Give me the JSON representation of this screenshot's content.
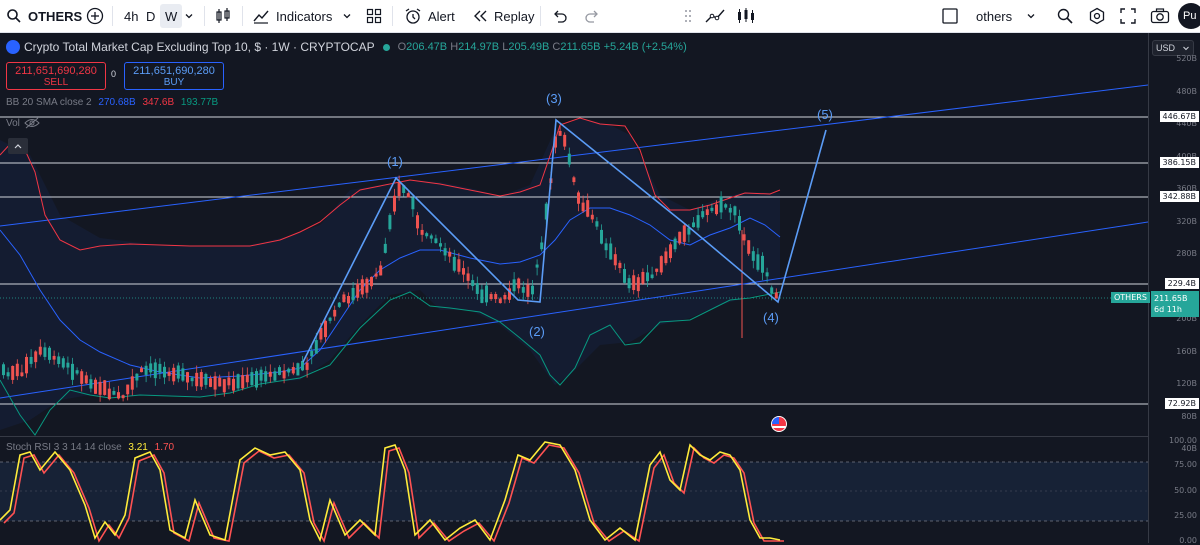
{
  "toolbar": {
    "symbol": "OTHERS",
    "intervals": [
      "4h",
      "D",
      "W"
    ],
    "active_interval": "W",
    "indicators_label": "Indicators",
    "alert_label": "Alert",
    "replay_label": "Replay",
    "layout_name": "others",
    "profile_initials": "Pu"
  },
  "legend": {
    "title": "Crypto Total Market Cap Excluding Top 10, $ · 1W · CRYPTOCAP",
    "open": "206.47B",
    "high": "214.97B",
    "low": "205.49B",
    "close": "211.65B",
    "change": "+5.24B (+2.54%)",
    "sell_price": "211,651,690,280",
    "sell_label": "SELL",
    "spread": "0",
    "buy_price": "211,651,690,280",
    "buy_label": "BUY",
    "bb_label": "BB 20 SMA close 2",
    "bb_basis": "270.68B",
    "bb_upper": "347.6B",
    "bb_lower": "193.77B",
    "vol_label": "Vol",
    "stoch_label": "Stoch RSI 3 3 14 14 close",
    "stoch_k": "3.21",
    "stoch_d": "1.70"
  },
  "waves": [
    "(1)",
    "(2)",
    "(3)",
    "(4)",
    "(5)"
  ],
  "price_axis": {
    "currency": "USD",
    "ticks": [
      "520B",
      "480B",
      "440B",
      "400B",
      "360B",
      "320B",
      "280B",
      "240B",
      "200B",
      "160B",
      "120B",
      "80B",
      "40B"
    ],
    "level_labels": [
      "446.67B",
      "386.15B",
      "342.88B",
      "229.4B",
      "72.92B"
    ],
    "current_symbol": "OTHERS",
    "current_price": "211.65B",
    "countdown": "6d 11h",
    "stoch_ticks": [
      "100.00",
      "75.00",
      "50.00",
      "25.00",
      "0.00"
    ]
  },
  "colors": {
    "up": "#26a69a",
    "down": "#ef5350",
    "bb_basis": "#2962ff",
    "bb_upper": "#f23645",
    "bb_lower": "#089981",
    "wave_line": "#5b9cf6",
    "stoch_k": "#ffeb3b",
    "stoch_d": "#ff5252"
  }
}
